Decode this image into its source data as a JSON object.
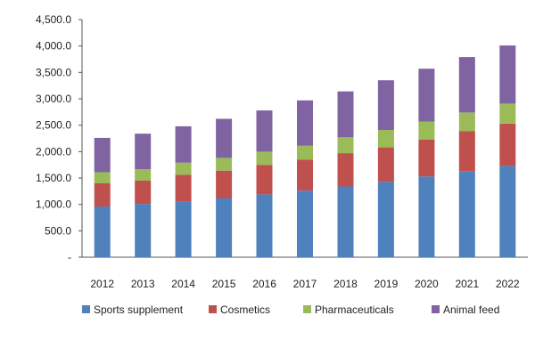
{
  "chart_data": {
    "type": "bar",
    "stacked": true,
    "title": "",
    "xlabel": "",
    "ylabel": "",
    "ylim": [
      0,
      4500
    ],
    "yticks": [
      0,
      500,
      1000,
      1500,
      2000,
      2500,
      3000,
      3500,
      4000,
      4500
    ],
    "ytick_labels": [
      "-",
      "500.0",
      "1,000.0",
      "1,500.0",
      "2,000.0",
      "2,500.0",
      "3,000.0",
      "3,500.0",
      "4,000.0",
      "4,500.0"
    ],
    "categories": [
      "2012",
      "2013",
      "2014",
      "2015",
      "2016",
      "2017",
      "2018",
      "2019",
      "2020",
      "2021",
      "2022"
    ],
    "legend_position": "bottom",
    "grid": false,
    "series": [
      {
        "name": "Sports supplement",
        "color": "#4f81bd",
        "values": [
          960,
          1010,
          1060,
          1120,
          1190,
          1260,
          1340,
          1430,
          1530,
          1630,
          1730
        ]
      },
      {
        "name": "Cosmetics",
        "color": "#c0504d",
        "values": [
          440,
          440,
          500,
          520,
          560,
          590,
          630,
          650,
          700,
          760,
          800
        ]
      },
      {
        "name": "Pharmaceuticals",
        "color": "#9bbb59",
        "values": [
          210,
          220,
          230,
          240,
          250,
          260,
          300,
          330,
          340,
          350,
          380
        ]
      },
      {
        "name": "Animal feed",
        "color": "#8064a2",
        "values": [
          650,
          670,
          690,
          740,
          780,
          860,
          870,
          940,
          1000,
          1050,
          1100
        ]
      }
    ]
  }
}
